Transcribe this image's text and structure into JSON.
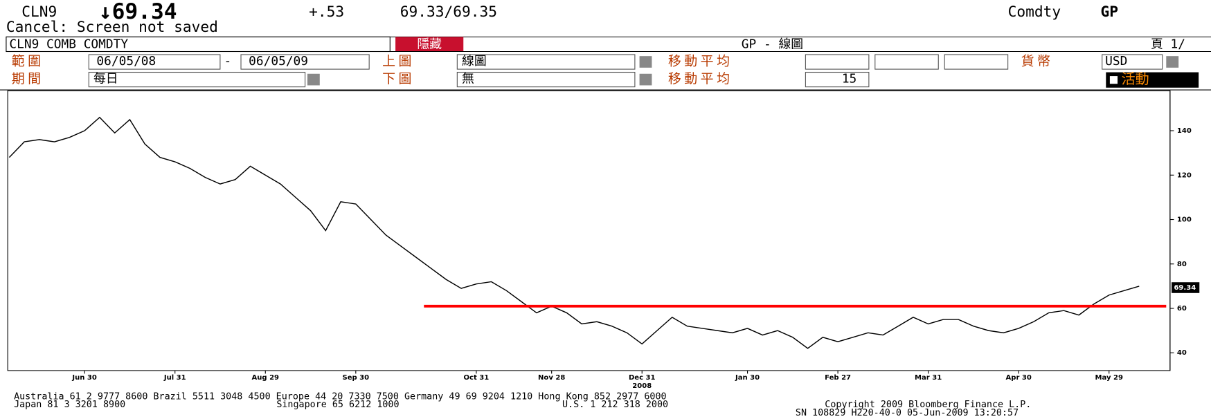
{
  "header": {
    "ticker": "CLN9",
    "price": "↓69.34",
    "change": "+.53",
    "bid_ask": "69.33/69.35",
    "market": "Comdty",
    "function": "GP",
    "status": "Cancel: Screen not saved"
  },
  "toolbar": {
    "security": "CLN9 COMB COMDTY",
    "hide_button": "隱藏",
    "screen_title": "GP - 線圖",
    "page": "頁 1/"
  },
  "form": {
    "range_label": "範圍",
    "start_date": "06/05/08",
    "range_sep": "-",
    "end_date": "06/05/09",
    "upper_label": "上圖",
    "upper_value": "線圖",
    "ma_label": "移動平均",
    "currency_label": "貨幣",
    "currency": "USD",
    "period_label": "期間",
    "period": "每日",
    "lower_label": "下圖",
    "lower_value": "無",
    "ma_label_2": "移動平均",
    "ma_value": "15",
    "live_button": "活動"
  },
  "chart_data": {
    "type": "line",
    "categories": [
      null,
      null,
      null,
      null,
      null,
      "Jun 30",
      null,
      null,
      null,
      null,
      null,
      "Jul 31",
      null,
      null,
      null,
      null,
      null,
      "Aug 29",
      null,
      null,
      null,
      null,
      null,
      "Sep 30",
      null,
      null,
      null,
      null,
      null,
      null,
      null,
      "Oct 31",
      null,
      null,
      null,
      null,
      "Nov 28",
      null,
      null,
      null,
      null,
      null,
      "Dec 31",
      null,
      null,
      null,
      null,
      null,
      null,
      "Jan 30",
      null,
      null,
      null,
      null,
      null,
      "Feb 27",
      null,
      null,
      null,
      null,
      null,
      "Mar 31",
      null,
      null,
      null,
      null,
      null,
      "Apr 30",
      null,
      null,
      null,
      null,
      null,
      "May 29",
      null,
      null
    ],
    "series": [
      {
        "color": "#000000",
        "values": [
          128,
          135,
          136,
          135,
          137,
          140,
          146,
          139,
          145,
          134,
          128,
          126,
          123,
          119,
          116,
          118,
          124,
          120,
          116,
          110,
          104,
          95,
          108,
          107,
          100,
          93,
          88,
          83,
          78,
          73,
          69,
          71,
          72,
          68,
          63,
          58,
          61,
          58,
          53,
          54,
          52,
          49,
          44,
          50,
          56,
          52,
          51,
          50,
          49,
          51,
          48,
          50,
          47,
          42,
          47,
          45,
          47,
          49,
          48,
          52,
          56,
          53,
          55,
          55,
          52,
          50,
          49,
          51,
          54,
          58,
          59,
          57,
          62,
          66,
          68,
          70
        ]
      }
    ],
    "year_label": "2008",
    "ylim": [
      32,
      158
    ],
    "yticks": [
      40,
      60,
      80,
      100,
      120,
      140
    ],
    "last_price": 69.34,
    "reference_line": {
      "value": 61,
      "color": "#ff0000"
    }
  },
  "footer": {
    "line1": "Australia 61 2 9777 8600 Brazil 5511 3048 4500 Europe 44 20 7330 7500 Germany 49 69 9204 1210 Hong Kong 852 2977 6000",
    "line2": [
      "Japan 81 3 3201 8900",
      "Singapore 65 6212 1000",
      "U.S. 1 212 318 2000",
      "Copyright 2009 Bloomberg Finance L.P."
    ],
    "line3": "SN 108829 H220-40-0 05-Jun-2009 13:20:57"
  }
}
